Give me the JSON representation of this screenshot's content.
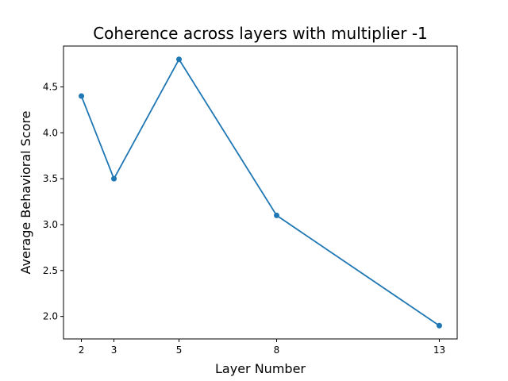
{
  "chart_data": {
    "type": "line",
    "title": "Coherence across layers with multiplier -1",
    "xlabel": "Layer Number",
    "ylabel": "Average Behavioral Score",
    "x": [
      2,
      3,
      5,
      8,
      13
    ],
    "series": [
      {
        "values": [
          4.4,
          3.5,
          4.8,
          3.1,
          1.9
        ]
      }
    ],
    "xticks": [
      2,
      3,
      5,
      8,
      13
    ],
    "yticks": [
      2.0,
      2.5,
      3.0,
      3.5,
      4.0,
      4.5
    ],
    "ytick_labels": [
      "2.0",
      "2.5",
      "3.0",
      "3.5",
      "4.0",
      "4.5"
    ],
    "xlim": [
      1.45,
      13.55
    ],
    "ylim": [
      1.755,
      4.945
    ],
    "grid": false,
    "line_color": "#1f77b4",
    "marker": "circle"
  }
}
